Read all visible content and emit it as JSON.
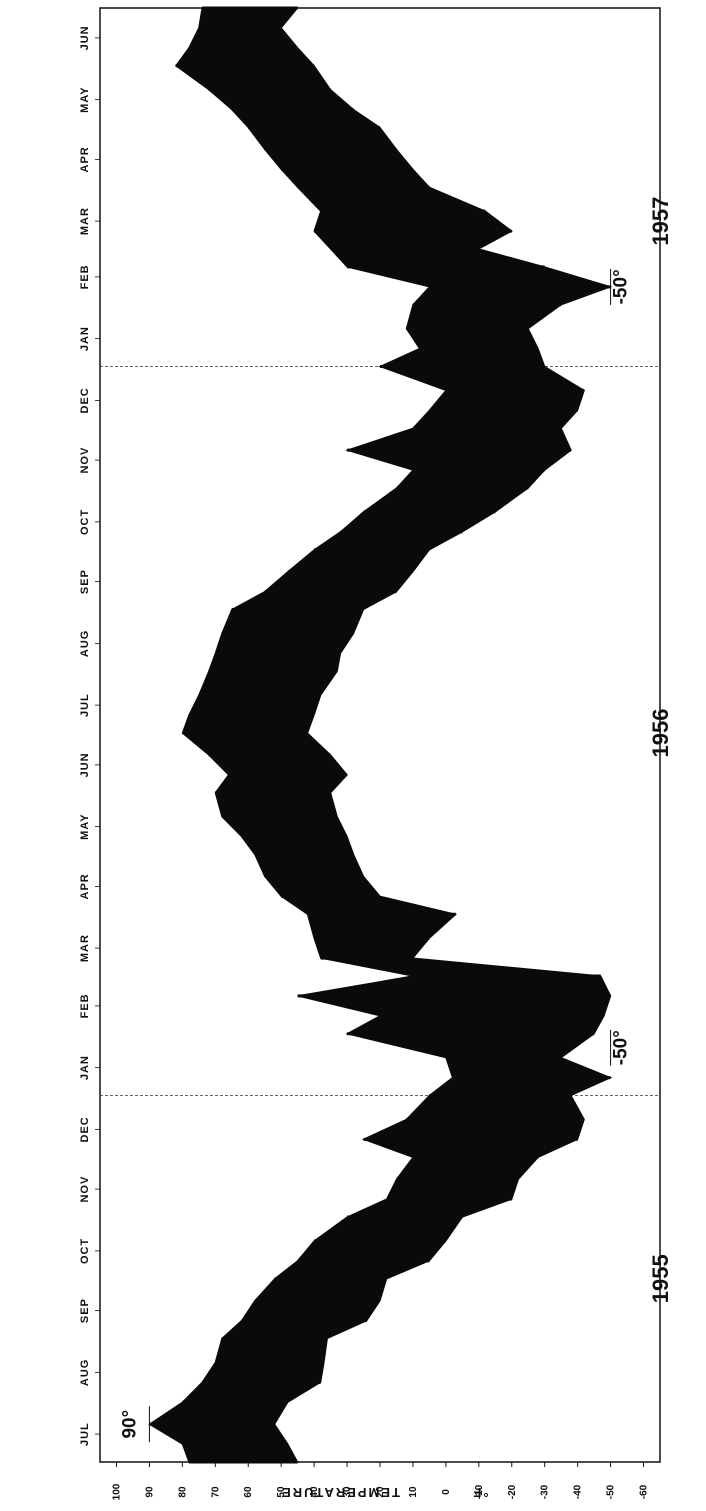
{
  "chart_data": {
    "type": "line",
    "ylabel": "TEMPERATURE",
    "yunit": "°F",
    "ylim": [
      -65,
      105
    ],
    "yticks": [
      100,
      90,
      80,
      70,
      60,
      50,
      40,
      30,
      20,
      10,
      0,
      -10,
      -20,
      -30,
      -40,
      -50,
      -60
    ],
    "ytick_labels": [
      "100",
      "90",
      "80",
      "70",
      "60",
      "50",
      "40",
      "30",
      "20",
      "10",
      "0",
      "-10",
      "-20",
      "-30",
      "-40",
      "-50",
      "-60"
    ],
    "xlim": [
      "1955-07-01",
      "1957-06-30"
    ],
    "months": [
      {
        "label": "JUL",
        "date": "1955-07-15"
      },
      {
        "label": "AUG",
        "date": "1955-08-15"
      },
      {
        "label": "SEP",
        "date": "1955-09-15"
      },
      {
        "label": "OCT",
        "date": "1955-10-15"
      },
      {
        "label": "NOV",
        "date": "1955-11-15"
      },
      {
        "label": "DEC",
        "date": "1955-12-15"
      },
      {
        "label": "JAN",
        "date": "1956-01-15"
      },
      {
        "label": "FEB",
        "date": "1956-02-15"
      },
      {
        "label": "MAR",
        "date": "1956-03-15"
      },
      {
        "label": "APR",
        "date": "1956-04-15"
      },
      {
        "label": "MAY",
        "date": "1956-05-15"
      },
      {
        "label": "JUN",
        "date": "1956-06-15"
      },
      {
        "label": "JUL",
        "date": "1956-07-15"
      },
      {
        "label": "AUG",
        "date": "1956-08-15"
      },
      {
        "label": "SEP",
        "date": "1956-09-15"
      },
      {
        "label": "OCT",
        "date": "1956-10-15"
      },
      {
        "label": "NOV",
        "date": "1956-11-15"
      },
      {
        "label": "DEC",
        "date": "1956-12-15"
      },
      {
        "label": "JAN",
        "date": "1957-01-15"
      },
      {
        "label": "FEB",
        "date": "1957-02-15"
      },
      {
        "label": "MAR",
        "date": "1957-03-15"
      },
      {
        "label": "APR",
        "date": "1957-04-15"
      },
      {
        "label": "MAY",
        "date": "1957-05-15"
      },
      {
        "label": "JUN",
        "date": "1957-06-15"
      }
    ],
    "years": [
      {
        "label": "1955",
        "date": "1955-10-01"
      },
      {
        "label": "1956",
        "date": "1956-07-01"
      },
      {
        "label": "1957",
        "date": "1957-03-15"
      }
    ],
    "year_dividers": [
      "1956-01-01",
      "1957-01-01"
    ],
    "series": [
      {
        "color": "#0a0a0a",
        "points": [
          {
            "date": "1955-07-01",
            "high": 78,
            "low": 45
          },
          {
            "date": "1955-07-10",
            "high": 80,
            "low": 48
          },
          {
            "date": "1955-07-20",
            "high": 90,
            "low": 52
          },
          {
            "date": "1955-07-31",
            "high": 80,
            "low": 48
          },
          {
            "date": "1955-08-10",
            "high": 74,
            "low": 38
          },
          {
            "date": "1955-08-20",
            "high": 70,
            "low": 37
          },
          {
            "date": "1955-09-01",
            "high": 68,
            "low": 36
          },
          {
            "date": "1955-09-10",
            "high": 62,
            "low": 24
          },
          {
            "date": "1955-09-20",
            "high": 58,
            "low": 20
          },
          {
            "date": "1955-10-01",
            "high": 52,
            "low": 18
          },
          {
            "date": "1955-10-10",
            "high": 45,
            "low": 5
          },
          {
            "date": "1955-10-20",
            "high": 40,
            "low": 0
          },
          {
            "date": "1955-11-01",
            "high": 30,
            "low": -5
          },
          {
            "date": "1955-11-10",
            "high": 18,
            "low": -20
          },
          {
            "date": "1955-11-20",
            "high": 15,
            "low": -22
          },
          {
            "date": "1955-12-01",
            "high": 10,
            "low": -28
          },
          {
            "date": "1955-12-10",
            "high": 25,
            "low": -40
          },
          {
            "date": "1955-12-20",
            "high": 12,
            "low": -42
          },
          {
            "date": "1956-01-01",
            "high": 5,
            "low": -38
          },
          {
            "date": "1956-01-10",
            "high": -2,
            "low": -50
          },
          {
            "date": "1956-01-20",
            "high": 0,
            "low": -35
          },
          {
            "date": "1956-02-01",
            "high": 30,
            "low": -45
          },
          {
            "date": "1956-02-10",
            "high": 20,
            "low": -48
          },
          {
            "date": "1956-02-20",
            "high": 45,
            "low": -50
          },
          {
            "date": "1956-03-01",
            "high": 10,
            "low": -47
          },
          {
            "date": "1956-03-10",
            "high": 38,
            "low": 10
          },
          {
            "date": "1956-03-20",
            "high": 40,
            "low": 5
          },
          {
            "date": "1956-04-01",
            "high": 42,
            "low": -3
          },
          {
            "date": "1956-04-10",
            "high": 50,
            "low": 20
          },
          {
            "date": "1956-04-20",
            "high": 55,
            "low": 25
          },
          {
            "date": "1956-05-01",
            "high": 58,
            "low": 28
          },
          {
            "date": "1956-05-10",
            "high": 62,
            "low": 30
          },
          {
            "date": "1956-05-20",
            "high": 68,
            "low": 33
          },
          {
            "date": "1956-06-01",
            "high": 70,
            "low": 35
          },
          {
            "date": "1956-06-10",
            "high": 66,
            "low": 30
          },
          {
            "date": "1956-06-20",
            "high": 72,
            "low": 35
          },
          {
            "date": "1956-07-01",
            "high": 80,
            "low": 42
          },
          {
            "date": "1956-07-10",
            "high": 78,
            "low": 40
          },
          {
            "date": "1956-07-20",
            "high": 75,
            "low": 38
          },
          {
            "date": "1956-08-01",
            "high": 72,
            "low": 33
          },
          {
            "date": "1956-08-10",
            "high": 70,
            "low": 32
          },
          {
            "date": "1956-08-20",
            "high": 68,
            "low": 28
          },
          {
            "date": "1956-09-01",
            "high": 65,
            "low": 25
          },
          {
            "date": "1956-09-10",
            "high": 55,
            "low": 15
          },
          {
            "date": "1956-09-20",
            "high": 48,
            "low": 10
          },
          {
            "date": "1956-10-01",
            "high": 40,
            "low": 5
          },
          {
            "date": "1956-10-10",
            "high": 32,
            "low": -5
          },
          {
            "date": "1956-10-20",
            "high": 25,
            "low": -15
          },
          {
            "date": "1956-11-01",
            "high": 15,
            "low": -25
          },
          {
            "date": "1956-11-10",
            "high": 10,
            "low": -30
          },
          {
            "date": "1956-11-20",
            "high": 30,
            "low": -38
          },
          {
            "date": "1956-12-01",
            "high": 10,
            "low": -35
          },
          {
            "date": "1956-12-10",
            "high": 5,
            "low": -40
          },
          {
            "date": "1956-12-20",
            "high": 0,
            "low": -42
          },
          {
            "date": "1957-01-01",
            "high": 20,
            "low": -30
          },
          {
            "date": "1957-01-10",
            "high": 8,
            "low": -28
          },
          {
            "date": "1957-01-20",
            "high": 12,
            "low": -25
          },
          {
            "date": "1957-02-01",
            "high": 10,
            "low": -35
          },
          {
            "date": "1957-02-10",
            "high": 5,
            "low": -50
          },
          {
            "date": "1957-02-20",
            "high": 30,
            "low": -30
          },
          {
            "date": "1957-03-01",
            "high": 35,
            "low": -10
          },
          {
            "date": "1957-03-10",
            "high": 40,
            "low": -20
          },
          {
            "date": "1957-03-20",
            "high": 38,
            "low": -12
          },
          {
            "date": "1957-04-01",
            "high": 45,
            "low": 5
          },
          {
            "date": "1957-04-10",
            "high": 50,
            "low": 10
          },
          {
            "date": "1957-04-20",
            "high": 55,
            "low": 15
          },
          {
            "date": "1957-05-01",
            "high": 60,
            "low": 20
          },
          {
            "date": "1957-05-10",
            "high": 65,
            "low": 28
          },
          {
            "date": "1957-05-20",
            "high": 72,
            "low": 35
          },
          {
            "date": "1957-06-01",
            "high": 82,
            "low": 40
          },
          {
            "date": "1957-06-10",
            "high": 78,
            "low": 45
          },
          {
            "date": "1957-06-20",
            "high": 75,
            "low": 50
          },
          {
            "date": "1957-06-30",
            "high": 74,
            "low": 45
          }
        ]
      }
    ],
    "annotations": [
      {
        "text": "90°",
        "date": "1955-07-20",
        "value": 90
      },
      {
        "text": "-50°",
        "date": "1956-01-25",
        "value": -50
      },
      {
        "text": "-50°",
        "date": "1957-02-10",
        "value": -50
      }
    ],
    "grid": false,
    "legend": "none"
  }
}
